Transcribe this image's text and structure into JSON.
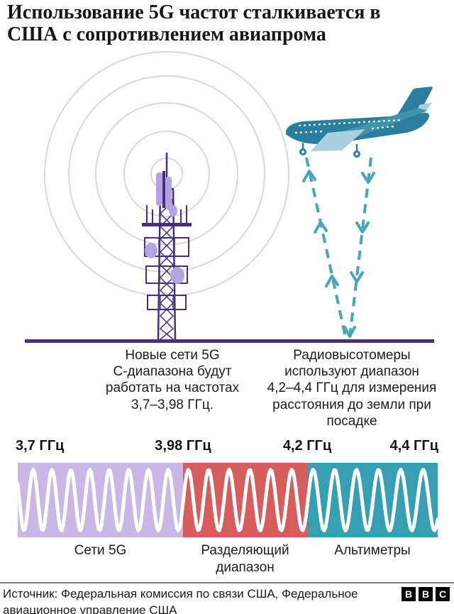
{
  "header": {
    "title": "Использование 5G частот сталкивается в\nСША с сопротивлением авиапрома"
  },
  "illustration": {
    "radio_waves_color": "#e3d4d4",
    "tower_color": "#472e85",
    "tower_panel_color": "#b3a3e0",
    "ground_color": "#463082",
    "plane_color": "#2b7f9e",
    "plane_wing_far_color": "#3f93ab",
    "plane_wing_near_color": "#a9cede",
    "beam_color": "#49a5ba",
    "tower_caption": "Новые сети 5G\nС-диапазона будут\nработать на частотах\n3,7–3,98 ГГц.",
    "plane_caption": "Радиовысотомеры\nиспользуют диапазон\n4,2–4,4 ГГц для измерения\nрасстояния до земли при\nпосадке"
  },
  "spectrum": {
    "tick_labels": [
      "3,7 ГГц",
      "3,98 ГГц",
      "4,2 ГГц",
      "4,4 ГГц"
    ],
    "bands": [
      {
        "label": "Сети 5G",
        "color": "#c9b8e6"
      },
      {
        "label": "Разделяющий диапазон",
        "color": "#d55d5e"
      },
      {
        "label": "Альтиметры",
        "color": "#369fb1"
      }
    ],
    "wave_color": "#ffffff"
  },
  "footer": {
    "source": "Источник: Федеральная комиссия по связи США, Федеральное\nавиационное управление США",
    "logo_letters": [
      "B",
      "B",
      "C"
    ]
  }
}
